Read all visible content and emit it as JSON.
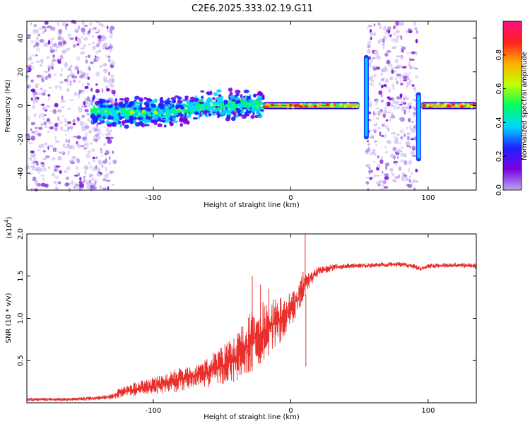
{
  "title": "C2E6.2025.333.02.19.G11",
  "chart_data": [
    {
      "type": "heatmap",
      "name": "spectrogram",
      "xlabel": "Height of straight line (km)",
      "ylabel": "Frequency (Hz)",
      "xlim": [
        -192,
        135
      ],
      "ylim": [
        -50,
        50
      ],
      "xticks": [
        -100,
        0,
        100
      ],
      "yticks": [
        -40,
        -20,
        0,
        20,
        40
      ],
      "colorbar": {
        "label": "Normalized spectral amplitude",
        "range": [
          0,
          1
        ],
        "ticks": [
          0.0,
          0.2,
          0.4,
          0.6,
          0.8
        ],
        "colors": [
          "#b8a8f0",
          "#7b00e0",
          "#2020ff",
          "#00d8ff",
          "#00ff60",
          "#c0ff00",
          "#ffb000",
          "#ff2020",
          "#ff1080"
        ]
      },
      "regions": [
        {
          "name": "low-altitude noise",
          "x_from": -192,
          "x_to": -128,
          "freq_from": -50,
          "freq_to": 50,
          "amplitude": 0.2
        },
        {
          "name": "main signal band",
          "x_from": -145,
          "x_to": -20,
          "freq_from": -8,
          "freq_to": 8,
          "amplitude": 0.35
        },
        {
          "name": "stable carrier",
          "x_from": -20,
          "x_to": 50,
          "freq_from": -2,
          "freq_to": 2,
          "amplitude": 0.95
        },
        {
          "name": "spike",
          "x": 55,
          "freq_from": -20,
          "freq_to": 30,
          "amplitude": 0.3
        },
        {
          "name": "noise gap",
          "x_from": 55,
          "x_to": 92,
          "freq_from": -50,
          "freq_to": 50,
          "amplitude": 0.2
        },
        {
          "name": "spike",
          "x": 93,
          "freq_from": -33,
          "freq_to": 8,
          "amplitude": 0.3
        },
        {
          "name": "stable carrier",
          "x_from": 95,
          "x_to": 135,
          "freq_from": -2,
          "freq_to": 2,
          "amplitude": 0.95
        }
      ]
    },
    {
      "type": "line",
      "name": "snr",
      "xlabel": "Height of straight line (km)",
      "ylabel": "SNR (10 * v/v)",
      "multiplier": "(x10",
      "multiplier_exp": "4",
      "multiplier_close": ")",
      "xlim": [
        -192,
        135
      ],
      "ylim": [
        0,
        2.0
      ],
      "xticks": [
        -100,
        0,
        100
      ],
      "yticks": [
        0.5,
        1.0,
        1.5,
        2.0
      ],
      "ytick_labels": [
        "0.5",
        "1.0",
        "1.5",
        "2.0"
      ],
      "color": "#e8302c",
      "envelope": {
        "x": [
          -192,
          -160,
          -140,
          -130,
          -120,
          -100,
          -80,
          -60,
          -40,
          -30,
          -20,
          -10,
          0,
          5,
          10,
          15,
          20,
          30,
          40,
          60,
          80,
          90,
          95,
          100,
          120,
          135
        ],
        "low": [
          0.02,
          0.02,
          0.03,
          0.04,
          0.06,
          0.1,
          0.13,
          0.18,
          0.25,
          0.35,
          0.5,
          0.65,
          0.9,
          1.05,
          1.25,
          1.4,
          1.5,
          1.56,
          1.59,
          1.6,
          1.61,
          1.58,
          1.56,
          1.59,
          1.6,
          1.59
        ],
        "high": [
          0.06,
          0.06,
          0.08,
          0.12,
          0.22,
          0.3,
          0.42,
          0.55,
          0.8,
          1.05,
          1.2,
          1.25,
          1.3,
          1.4,
          1.6,
          1.55,
          1.62,
          1.64,
          1.65,
          1.66,
          1.67,
          1.64,
          1.61,
          1.65,
          1.66,
          1.65
        ]
      },
      "peaks": [
        {
          "x": 10.5,
          "y": 2.0
        },
        {
          "x": 11,
          "y": 0.43
        },
        {
          "x": -28,
          "y": 1.5
        },
        {
          "x": -22,
          "y": 1.4
        },
        {
          "x": -16,
          "y": 1.35
        }
      ]
    }
  ]
}
